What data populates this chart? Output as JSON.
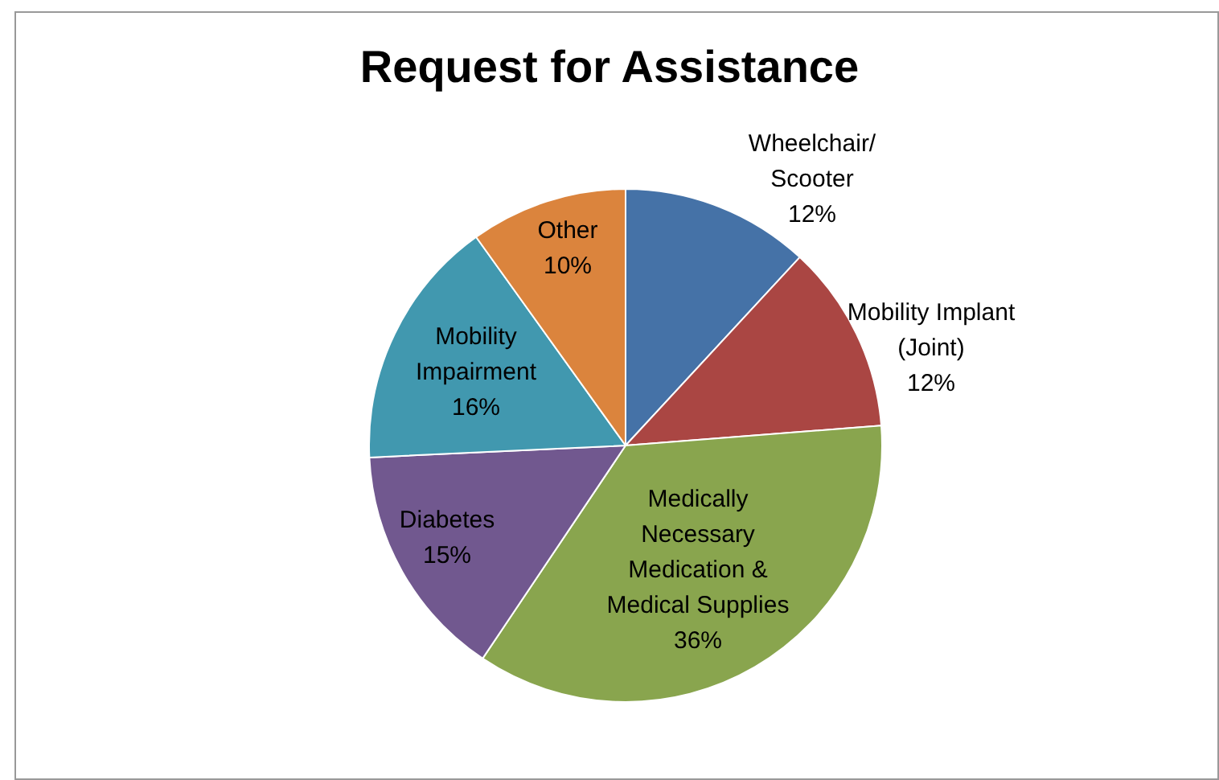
{
  "chart_data": {
    "type": "pie",
    "title": "Request for Assistance",
    "categories": [
      "Wheelchair/\nScooter",
      "Mobility Implant\n(Joint)",
      "Medically\nNecessary\nMedication &\nMedical Supplies",
      "Diabetes",
      "Mobility\nImpairment",
      "Other"
    ],
    "values": [
      12,
      12,
      36,
      15,
      16,
      10
    ],
    "value_labels": [
      "12%",
      "12%",
      "36%",
      "15%",
      "16%",
      "10%"
    ],
    "colors": [
      "#4572a7",
      "#aa4643",
      "#89a54e",
      "#71588f",
      "#4198af",
      "#db843d"
    ],
    "legend": false
  }
}
